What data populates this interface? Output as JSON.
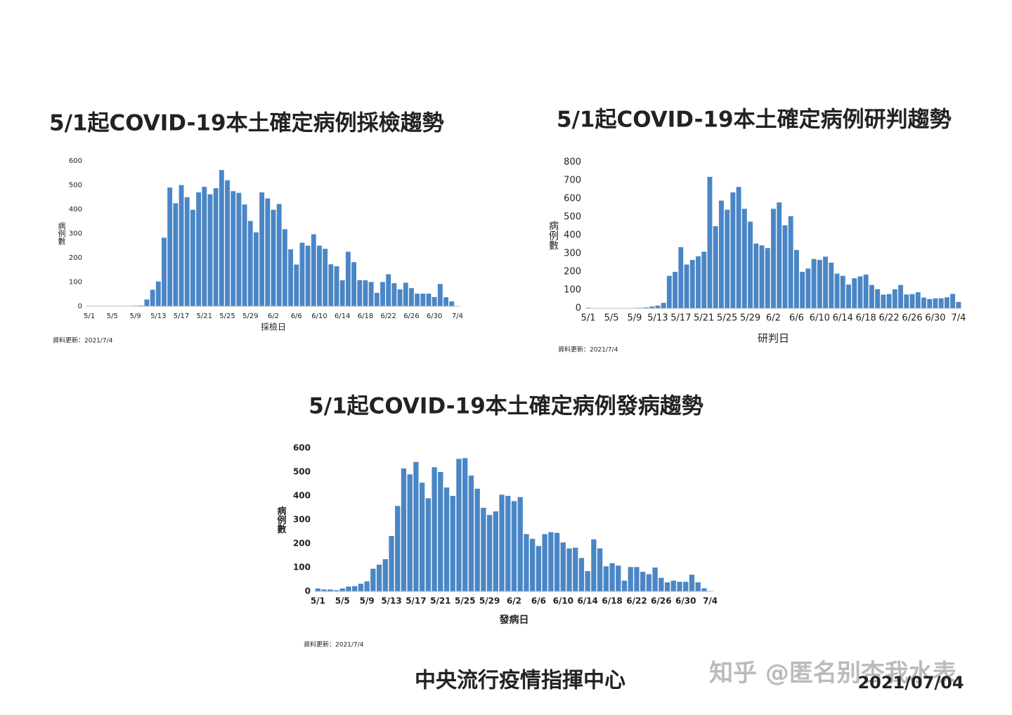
{
  "chart_data": [
    {
      "type": "bar",
      "title": "5/1起COVID-19本土確定病例採檢趨勢",
      "x_label": "採檢日",
      "y_label": "病例數",
      "note": "資料更新：2021/7/4",
      "color": "#4a86c5",
      "ylim": [
        0,
        600
      ],
      "yticks": [
        0,
        100,
        200,
        300,
        400,
        500,
        600
      ],
      "grid": false,
      "categories": [
        "5/1",
        null,
        null,
        null,
        "5/5",
        null,
        null,
        null,
        "5/9",
        null,
        null,
        null,
        "5/13",
        null,
        null,
        null,
        "5/17",
        null,
        null,
        null,
        "5/21",
        null,
        null,
        null,
        "5/25",
        null,
        null,
        null,
        "5/29",
        null,
        null,
        null,
        "6/2",
        null,
        null,
        null,
        "6/6",
        null,
        null,
        null,
        "6/10",
        null,
        null,
        null,
        "6/14",
        null,
        null,
        null,
        "6/18",
        null,
        null,
        null,
        "6/22",
        null,
        null,
        null,
        "6/26",
        null,
        null,
        null,
        "6/30",
        null,
        null,
        null,
        "7/4"
      ],
      "values": [
        0,
        0,
        0,
        0,
        0,
        0,
        1,
        1,
        2,
        3,
        28,
        68,
        102,
        283,
        490,
        425,
        500,
        450,
        398,
        470,
        493,
        462,
        487,
        562,
        520,
        475,
        468,
        420,
        352,
        305,
        470,
        445,
        398,
        422,
        318,
        235,
        172,
        262,
        250,
        297,
        250,
        237,
        173,
        165,
        107,
        225,
        182,
        108,
        107,
        100,
        55,
        100,
        132,
        95,
        70,
        97,
        75,
        52,
        52,
        52,
        38,
        92,
        37,
        20,
        0
      ]
    },
    {
      "type": "bar",
      "title": "5/1起COVID-19本土確定病例研判趨勢",
      "x_label": "研判日",
      "y_label": "病例數",
      "note": "資料更新：2021/7/4",
      "color": "#4a86c5",
      "ylim": [
        0,
        800
      ],
      "yticks": [
        0,
        100,
        200,
        300,
        400,
        500,
        600,
        700,
        800
      ],
      "grid": false,
      "categories": [
        "5/1",
        null,
        null,
        null,
        "5/5",
        null,
        null,
        null,
        "5/9",
        null,
        null,
        null,
        "5/13",
        null,
        null,
        null,
        "5/17",
        null,
        null,
        null,
        "5/21",
        null,
        null,
        null,
        "5/25",
        null,
        null,
        null,
        "5/29",
        null,
        null,
        null,
        "6/2",
        null,
        null,
        null,
        "6/6",
        null,
        null,
        null,
        "6/10",
        null,
        null,
        null,
        "6/14",
        null,
        null,
        null,
        "6/18",
        null,
        null,
        null,
        "6/22",
        null,
        null,
        null,
        "6/26",
        null,
        null,
        null,
        "6/30",
        null,
        null,
        null,
        "7/4"
      ],
      "values": [
        3,
        1,
        0,
        0,
        0,
        0,
        0,
        0,
        2,
        3,
        5,
        10,
        15,
        30,
        178,
        200,
        335,
        240,
        265,
        285,
        310,
        720,
        450,
        590,
        540,
        635,
        665,
        545,
        475,
        355,
        345,
        330,
        545,
        580,
        455,
        505,
        320,
        200,
        218,
        270,
        265,
        283,
        250,
        190,
        178,
        130,
        165,
        175,
        185,
        128,
        105,
        75,
        78,
        104,
        128,
        76,
        78,
        88,
        59,
        51,
        55,
        55,
        60,
        79,
        35
      ]
    },
    {
      "type": "bar",
      "title": "5/1起COVID-19本土確定病例發病趨勢",
      "x_label": "發病日",
      "y_label": "病例數",
      "note": "資料更新：2021/7/4",
      "color": "#4a86c5",
      "ylim": [
        0,
        600
      ],
      "yticks": [
        0,
        100,
        200,
        300,
        400,
        500,
        600
      ],
      "grid": false,
      "categories": [
        "5/1",
        null,
        null,
        null,
        "5/5",
        null,
        null,
        null,
        "5/9",
        null,
        null,
        null,
        "5/13",
        null,
        null,
        null,
        "5/17",
        null,
        null,
        null,
        "5/21",
        null,
        null,
        null,
        "5/25",
        null,
        null,
        null,
        "5/29",
        null,
        null,
        null,
        "6/2",
        null,
        null,
        null,
        "6/6",
        null,
        null,
        null,
        "6/10",
        null,
        null,
        null,
        "6/14",
        null,
        null,
        null,
        "6/18",
        null,
        null,
        null,
        "6/22",
        null,
        null,
        null,
        "6/26",
        null,
        null,
        null,
        "6/30",
        null,
        null,
        null,
        "7/4"
      ],
      "values": [
        12,
        8,
        8,
        5,
        12,
        20,
        22,
        32,
        42,
        95,
        112,
        135,
        232,
        358,
        515,
        490,
        542,
        455,
        390,
        520,
        500,
        435,
        400,
        555,
        558,
        485,
        430,
        350,
        320,
        335,
        405,
        400,
        378,
        395,
        240,
        220,
        190,
        240,
        248,
        245,
        205,
        180,
        183,
        140,
        85,
        218,
        180,
        105,
        118,
        108,
        45,
        102,
        102,
        82,
        72,
        100,
        57,
        38,
        45,
        40,
        40,
        70,
        38,
        13,
        0
      ]
    }
  ],
  "footer": {
    "org": "中央流行疫情指揮中心",
    "date": "2021/07/04",
    "watermark": "知乎 @匿名别杏我水表"
  }
}
